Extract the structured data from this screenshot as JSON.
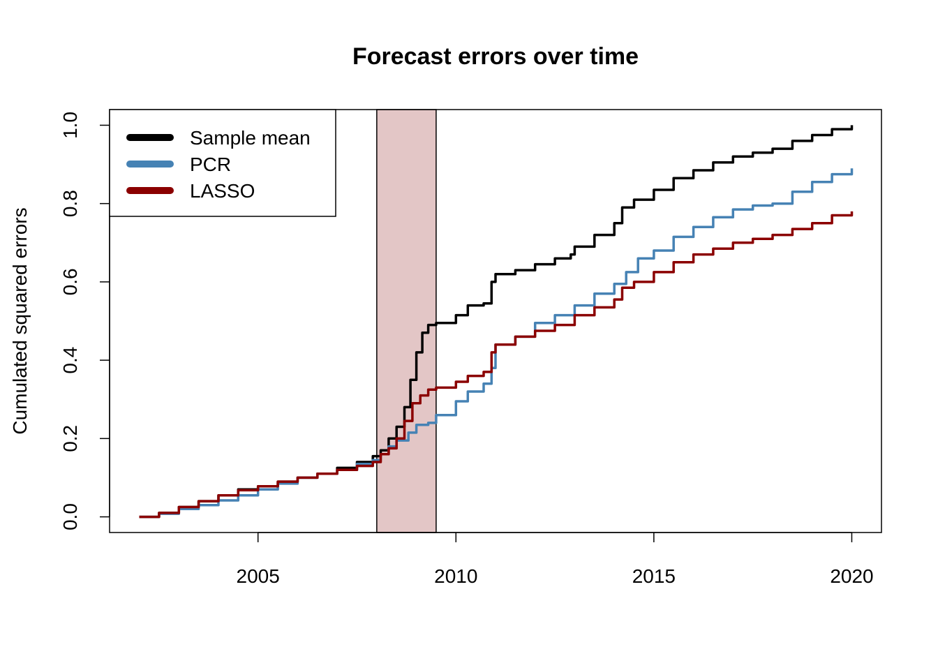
{
  "chart_data": {
    "type": "line",
    "title": "Forecast errors over time",
    "xlabel": "",
    "ylabel": "Cumulated squared errors",
    "xlim": [
      2001.25,
      2020.75
    ],
    "ylim": [
      -0.04,
      1.04
    ],
    "xticks": [
      {
        "value": 2005,
        "label": "2005"
      },
      {
        "value": 2010,
        "label": "2010"
      },
      {
        "value": 2015,
        "label": "2015"
      },
      {
        "value": 2020,
        "label": "2020"
      }
    ],
    "yticks": [
      {
        "value": 0.0,
        "label": "0.0"
      },
      {
        "value": 0.2,
        "label": "0.2"
      },
      {
        "value": 0.4,
        "label": "0.4"
      },
      {
        "value": 0.6,
        "label": "0.6"
      },
      {
        "value": 0.8,
        "label": "0.8"
      },
      {
        "value": 1.0,
        "label": "1.0"
      }
    ],
    "grid": false,
    "legend_position": "top-left",
    "shaded_region": {
      "x_start": 2008.0,
      "x_end": 2009.5,
      "color": "#e3c6c6"
    },
    "series": [
      {
        "name": "Sample mean",
        "color": "#000000",
        "x": [
          2002.0,
          2002.5,
          2003.0,
          2003.5,
          2004.0,
          2004.5,
          2005.0,
          2005.5,
          2006.0,
          2006.5,
          2007.0,
          2007.5,
          2007.9,
          2008.1,
          2008.3,
          2008.5,
          2008.7,
          2008.85,
          2009.0,
          2009.15,
          2009.3,
          2009.5,
          2010.0,
          2010.3,
          2010.7,
          2010.9,
          2011.0,
          2011.5,
          2012.0,
          2012.5,
          2012.9,
          2013.0,
          2013.5,
          2014.0,
          2014.2,
          2014.5,
          2015.0,
          2015.5,
          2016.0,
          2016.5,
          2017.0,
          2017.5,
          2018.0,
          2018.5,
          2019.0,
          2019.5,
          2020.0
        ],
        "values": [
          0.0,
          0.01,
          0.025,
          0.04,
          0.055,
          0.07,
          0.078,
          0.09,
          0.1,
          0.11,
          0.125,
          0.14,
          0.155,
          0.17,
          0.2,
          0.23,
          0.28,
          0.35,
          0.42,
          0.47,
          0.49,
          0.495,
          0.515,
          0.54,
          0.545,
          0.6,
          0.62,
          0.63,
          0.645,
          0.66,
          0.67,
          0.69,
          0.72,
          0.75,
          0.79,
          0.81,
          0.835,
          0.865,
          0.885,
          0.905,
          0.92,
          0.93,
          0.94,
          0.96,
          0.975,
          0.99,
          1.0
        ]
      },
      {
        "name": "PCR",
        "color": "#4682b4",
        "x": [
          2002.0,
          2002.5,
          2003.0,
          2003.5,
          2004.0,
          2004.5,
          2005.0,
          2005.5,
          2006.0,
          2006.5,
          2007.0,
          2007.5,
          2007.9,
          2008.1,
          2008.3,
          2008.5,
          2008.8,
          2009.0,
          2009.3,
          2009.5,
          2010.0,
          2010.3,
          2010.7,
          2010.9,
          2011.0,
          2011.5,
          2012.0,
          2012.5,
          2013.0,
          2013.5,
          2014.0,
          2014.3,
          2014.6,
          2015.0,
          2015.5,
          2016.0,
          2016.5,
          2017.0,
          2017.5,
          2018.0,
          2018.5,
          2019.0,
          2019.5,
          2020.0
        ],
        "values": [
          0.0,
          0.008,
          0.02,
          0.03,
          0.042,
          0.055,
          0.07,
          0.085,
          0.1,
          0.11,
          0.12,
          0.135,
          0.145,
          0.16,
          0.18,
          0.195,
          0.215,
          0.235,
          0.24,
          0.26,
          0.295,
          0.32,
          0.34,
          0.38,
          0.44,
          0.46,
          0.495,
          0.515,
          0.54,
          0.57,
          0.595,
          0.625,
          0.66,
          0.68,
          0.715,
          0.74,
          0.765,
          0.785,
          0.795,
          0.8,
          0.83,
          0.855,
          0.875,
          0.89
        ]
      },
      {
        "name": "LASSO",
        "color": "#8b0000",
        "x": [
          2002.0,
          2002.5,
          2003.0,
          2003.5,
          2004.0,
          2004.5,
          2005.0,
          2005.5,
          2006.0,
          2006.5,
          2007.0,
          2007.5,
          2007.9,
          2008.1,
          2008.3,
          2008.5,
          2008.7,
          2008.9,
          2009.1,
          2009.3,
          2009.5,
          2010.0,
          2010.3,
          2010.7,
          2010.9,
          2011.0,
          2011.5,
          2012.0,
          2012.5,
          2013.0,
          2013.5,
          2014.0,
          2014.2,
          2014.5,
          2015.0,
          2015.5,
          2016.0,
          2016.5,
          2017.0,
          2017.5,
          2018.0,
          2018.5,
          2019.0,
          2019.5,
          2020.0
        ],
        "values": [
          0.0,
          0.01,
          0.025,
          0.04,
          0.055,
          0.068,
          0.078,
          0.09,
          0.1,
          0.11,
          0.12,
          0.13,
          0.14,
          0.16,
          0.175,
          0.2,
          0.245,
          0.29,
          0.31,
          0.325,
          0.33,
          0.345,
          0.36,
          0.37,
          0.42,
          0.44,
          0.46,
          0.475,
          0.49,
          0.515,
          0.535,
          0.555,
          0.585,
          0.6,
          0.625,
          0.65,
          0.67,
          0.685,
          0.7,
          0.71,
          0.72,
          0.735,
          0.75,
          0.77,
          0.78
        ]
      }
    ]
  }
}
